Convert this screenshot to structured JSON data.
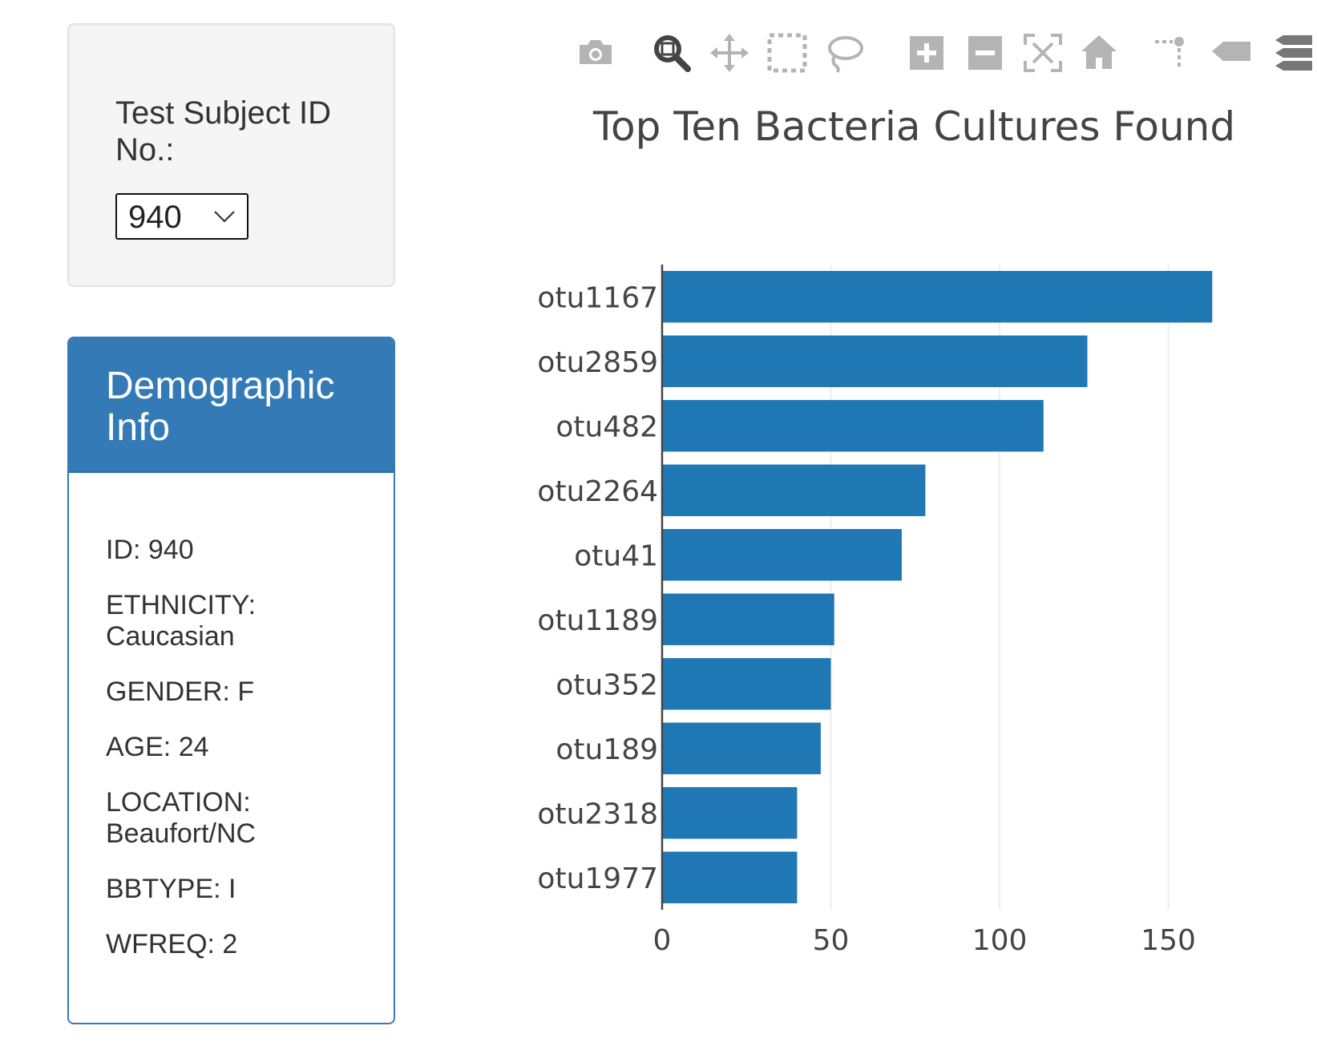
{
  "selector": {
    "label": "Test Subject ID No.:",
    "selected_value": "940"
  },
  "demographics": {
    "title": "Demographic Info",
    "rows": [
      "ID: 940",
      "ETHNICITY: Caucasian",
      "GENDER: F",
      "AGE: 24",
      "LOCATION: Beaufort/NC",
      "BBTYPE: I",
      "WFREQ: 2"
    ]
  },
  "modebar": {
    "buttons": [
      {
        "name": "camera-icon",
        "label": "Download plot as a png"
      },
      {
        "name": "zoom-icon",
        "label": "Zoom",
        "active": true
      },
      {
        "name": "pan-icon",
        "label": "Pan"
      },
      {
        "name": "box-select-icon",
        "label": "Box Select"
      },
      {
        "name": "lasso-select-icon",
        "label": "Lasso Select"
      },
      {
        "name": "zoom-in-icon",
        "label": "Zoom in"
      },
      {
        "name": "zoom-out-icon",
        "label": "Zoom out"
      },
      {
        "name": "autoscale-icon",
        "label": "Autoscale"
      },
      {
        "name": "reset-axes-icon",
        "label": "Reset axes"
      },
      {
        "name": "spike-lines-icon",
        "label": "Toggle Spike Lines"
      },
      {
        "name": "hover-closest-icon",
        "label": "Show closest data on hover"
      },
      {
        "name": "hover-compare-icon",
        "label": "Compare data on hover"
      }
    ]
  },
  "chart_data": {
    "type": "bar",
    "orientation": "horizontal",
    "title": "Top Ten Bacteria Cultures Found",
    "xlabel": "",
    "ylabel": "",
    "categories": [
      "otu1167",
      "otu2859",
      "otu482",
      "otu2264",
      "otu41",
      "otu1189",
      "otu352",
      "otu189",
      "otu2318",
      "otu1977"
    ],
    "values": [
      163,
      126,
      113,
      78,
      71,
      51,
      50,
      47,
      40,
      40
    ],
    "xlim": [
      0,
      190
    ],
    "xticks": [
      "0",
      "50",
      "100",
      "150"
    ],
    "xtick_values": [
      0,
      50,
      100,
      150
    ],
    "bar_color": "#1f77b4",
    "grid": true
  }
}
